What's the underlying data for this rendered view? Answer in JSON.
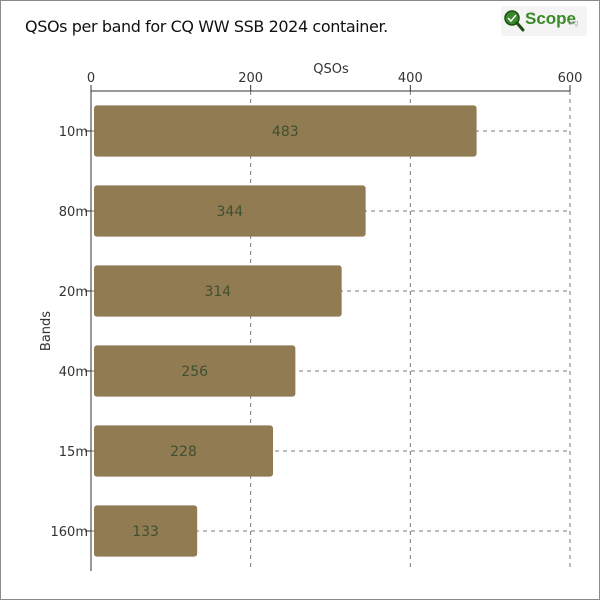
{
  "header": {
    "title": "QSOs per band for CQ WW SSB 2024 container.",
    "logo_text": "Scope",
    "logo_suffix": "org"
  },
  "colors": {
    "bar": "#917b52",
    "bar_label": "#3f5030",
    "grid": "#777777",
    "axis": "#333333",
    "logo_green": "#3a8a2a"
  },
  "chart_data": {
    "type": "bar",
    "orientation": "horizontal",
    "title": "QSOs per band for CQ WW SSB 2024 container.",
    "xlabel": "QSOs",
    "ylabel": "Bands",
    "xaxis_position": "top",
    "xlim": [
      0,
      600
    ],
    "xticks": [
      0,
      200,
      400,
      600
    ],
    "grid": true,
    "categories": [
      "10m",
      "80m",
      "20m",
      "40m",
      "15m",
      "160m"
    ],
    "values": [
      483,
      344,
      314,
      256,
      228,
      133
    ]
  }
}
